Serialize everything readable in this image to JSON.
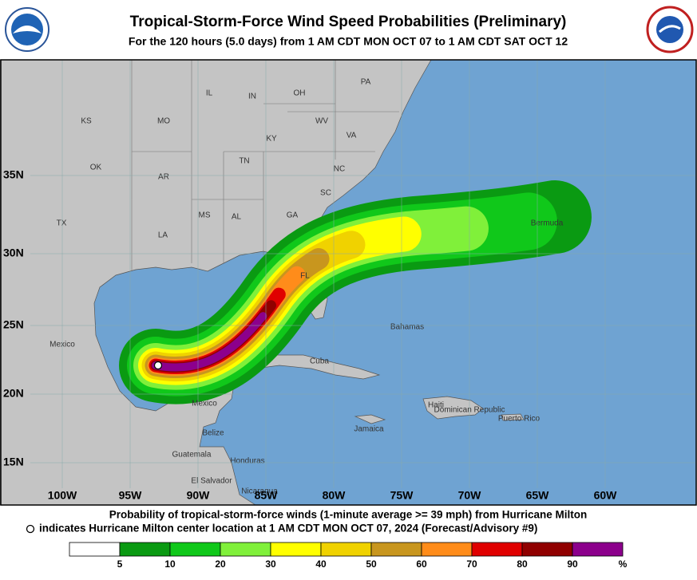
{
  "header": {
    "title": "Tropical-Storm-Force Wind Speed Probabilities (Preliminary)",
    "subtitle": "For the 120 hours (5.0 days) from 1 AM CDT MON OCT 07 to 1 AM CDT SAT OCT 12"
  },
  "map": {
    "lat_labels": [
      "35N",
      "30N",
      "25N",
      "20N",
      "15N"
    ],
    "lon_labels": [
      "100W",
      "95W",
      "90W",
      "85W",
      "80W",
      "75W",
      "70W",
      "65W",
      "60W"
    ],
    "places": [
      "KS",
      "MO",
      "IL",
      "IN",
      "OH",
      "PA",
      "WV",
      "VA",
      "KY",
      "TN",
      "NC",
      "OK",
      "AR",
      "SC",
      "TX",
      "MS",
      "AL",
      "GA",
      "LA",
      "FL",
      "Mexico",
      "Cuba",
      "Bahamas",
      "Mexico",
      "Belize",
      "Jamaica",
      "Haiti",
      "Dominican Republic",
      "Puerto Rico",
      "Bermuda",
      "Guatemala",
      "Honduras",
      "El Salvador",
      "Nicaragua"
    ]
  },
  "footer": {
    "line1": "Probability of tropical-storm-force winds (1-minute average >= 39 mph) from Hurricane Milton",
    "line2": "indicates Hurricane Milton center location at 1 AM CDT MON OCT 07, 2024 (Forecast/Advisory #9)"
  },
  "legend": {
    "colors": [
      "#ffffff",
      "#0a9a12",
      "#10c81a",
      "#80f03a",
      "#ffff00",
      "#f0d200",
      "#c8961e",
      "#ff8c1a",
      "#e00000",
      "#900000",
      "#8c008c"
    ],
    "thresholds": [
      5,
      10,
      20,
      30,
      40,
      50,
      60,
      70,
      80,
      90
    ],
    "unit": "%"
  }
}
